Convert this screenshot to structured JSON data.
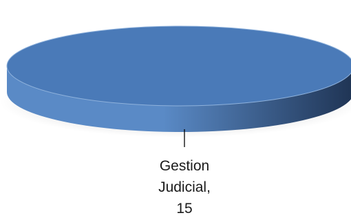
{
  "chart_data": {
    "type": "pie",
    "title": "",
    "categories": [
      "Gestion Judicial"
    ],
    "values": [
      15
    ],
    "series": [
      {
        "values": [
          15
        ]
      }
    ],
    "legend": "none",
    "data_labels": {
      "line1": "Gestion",
      "line2": "Judicial,",
      "line3": "15"
    },
    "colors": {
      "slice_top": "#4a7ab8",
      "slice_side_light": "#5a8ac6",
      "slice_side_dark": "#1f3454",
      "rim": "#8fb2dc",
      "leader_line": "#000000"
    }
  }
}
